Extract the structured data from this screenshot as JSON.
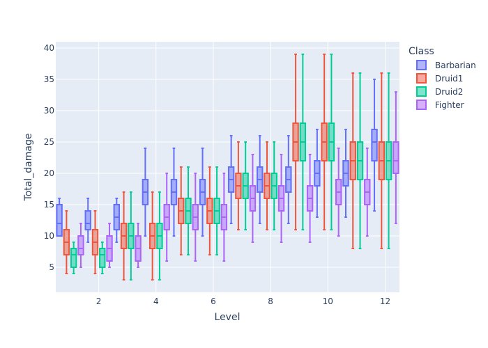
{
  "chart_data": {
    "type": "box",
    "xlabel": "Level",
    "ylabel": "Total_damage",
    "xlim": [
      0.5,
      12.5
    ],
    "ylim": [
      1,
      41
    ],
    "x_ticks": [
      2,
      4,
      6,
      8,
      10,
      12
    ],
    "y_ticks": [
      5,
      10,
      15,
      20,
      25,
      30,
      35,
      40
    ],
    "grid": true,
    "legend_title": "Class",
    "legend_position": "top-right",
    "series": [
      {
        "name": "Barbarian",
        "color": "#636efa",
        "boxes": [
          {
            "level": 1,
            "min": 10,
            "q1": 10,
            "median": 12,
            "q3": 15,
            "max": 16
          },
          {
            "level": 2,
            "min": 9,
            "q1": 11,
            "median": 12,
            "q3": 14,
            "max": 16
          },
          {
            "level": 3,
            "min": 9,
            "q1": 11,
            "median": 13,
            "q3": 15,
            "max": 16
          },
          {
            "level": 4,
            "min": 10,
            "q1": 15,
            "median": 17,
            "q3": 19,
            "max": 24
          },
          {
            "level": 5,
            "min": 10,
            "q1": 15,
            "median": 17,
            "q3": 19,
            "max": 24
          },
          {
            "level": 6,
            "min": 10,
            "q1": 15,
            "median": 17,
            "q3": 19,
            "max": 24
          },
          {
            "level": 7,
            "min": 12,
            "q1": 17,
            "median": 19,
            "q3": 21,
            "max": 26
          },
          {
            "level": 8,
            "min": 12,
            "q1": 17,
            "median": 19,
            "q3": 21,
            "max": 26
          },
          {
            "level": 9,
            "min": 12,
            "q1": 17,
            "median": 19,
            "q3": 21,
            "max": 26
          },
          {
            "level": 10,
            "min": 13,
            "q1": 18,
            "median": 20,
            "q3": 22,
            "max": 27
          },
          {
            "level": 11,
            "min": 13,
            "q1": 18,
            "median": 20,
            "q3": 22,
            "max": 27
          },
          {
            "level": 12,
            "min": 14,
            "q1": 22,
            "median": 25,
            "q3": 27,
            "max": 35
          }
        ]
      },
      {
        "name": "Druid1",
        "color": "#ef553b",
        "boxes": [
          {
            "level": 1,
            "min": 4,
            "q1": 7,
            "median": 9,
            "q3": 11,
            "max": 14
          },
          {
            "level": 2,
            "min": 4,
            "q1": 7,
            "median": 9,
            "q3": 11,
            "max": 14
          },
          {
            "level": 3,
            "min": 3,
            "q1": 8,
            "median": 10,
            "q3": 12,
            "max": 17
          },
          {
            "level": 4,
            "min": 3,
            "q1": 8,
            "median": 10,
            "q3": 12,
            "max": 17
          },
          {
            "level": 5,
            "min": 7,
            "q1": 12,
            "median": 14,
            "q3": 16,
            "max": 21
          },
          {
            "level": 6,
            "min": 7,
            "q1": 12,
            "median": 14,
            "q3": 16,
            "max": 21
          },
          {
            "level": 7,
            "min": 11,
            "q1": 16,
            "median": 18,
            "q3": 20,
            "max": 25
          },
          {
            "level": 8,
            "min": 11,
            "q1": 16,
            "median": 18,
            "q3": 20,
            "max": 25
          },
          {
            "level": 9,
            "min": 11,
            "q1": 22,
            "median": 25,
            "q3": 28,
            "max": 39
          },
          {
            "level": 10,
            "min": 11,
            "q1": 22,
            "median": 25,
            "q3": 28,
            "max": 39
          },
          {
            "level": 11,
            "min": 8,
            "q1": 19,
            "median": 22,
            "q3": 25,
            "max": 36
          },
          {
            "level": 12,
            "min": 8,
            "q1": 19,
            "median": 22,
            "q3": 25,
            "max": 36
          }
        ]
      },
      {
        "name": "Druid2",
        "color": "#00cc96",
        "boxes": [
          {
            "level": 1,
            "min": 4,
            "q1": 5,
            "median": 7,
            "q3": 8,
            "max": 9
          },
          {
            "level": 2,
            "min": 4,
            "q1": 5,
            "median": 7,
            "q3": 8,
            "max": 9
          },
          {
            "level": 3,
            "min": 3,
            "q1": 8,
            "median": 10,
            "q3": 12,
            "max": 17
          },
          {
            "level": 4,
            "min": 3,
            "q1": 8,
            "median": 10,
            "q3": 12,
            "max": 17
          },
          {
            "level": 5,
            "min": 7,
            "q1": 12,
            "median": 14,
            "q3": 16,
            "max": 21
          },
          {
            "level": 6,
            "min": 7,
            "q1": 12,
            "median": 14,
            "q3": 16,
            "max": 21
          },
          {
            "level": 7,
            "min": 11,
            "q1": 16,
            "median": 18,
            "q3": 20,
            "max": 25
          },
          {
            "level": 8,
            "min": 11,
            "q1": 16,
            "median": 18,
            "q3": 20,
            "max": 25
          },
          {
            "level": 9,
            "min": 11,
            "q1": 22,
            "median": 25,
            "q3": 28,
            "max": 39
          },
          {
            "level": 10,
            "min": 11,
            "q1": 22,
            "median": 25,
            "q3": 28,
            "max": 39
          },
          {
            "level": 11,
            "min": 8,
            "q1": 19,
            "median": 22,
            "q3": 25,
            "max": 36
          },
          {
            "level": 12,
            "min": 8,
            "q1": 19,
            "median": 22,
            "q3": 25,
            "max": 36
          }
        ]
      },
      {
        "name": "Fighter",
        "color": "#ab63fa",
        "boxes": [
          {
            "level": 1,
            "min": 5,
            "q1": 7,
            "median": 8,
            "q3": 10,
            "max": 12
          },
          {
            "level": 2,
            "min": 5,
            "q1": 6,
            "median": 8,
            "q3": 10,
            "max": 12
          },
          {
            "level": 3,
            "min": 5,
            "q1": 6,
            "median": 8,
            "q3": 10,
            "max": 12
          },
          {
            "level": 4,
            "min": 6,
            "q1": 11,
            "median": 13,
            "q3": 15,
            "max": 20
          },
          {
            "level": 5,
            "min": 6,
            "q1": 11,
            "median": 13,
            "q3": 15,
            "max": 20
          },
          {
            "level": 6,
            "min": 6,
            "q1": 11,
            "median": 13,
            "q3": 15,
            "max": 20
          },
          {
            "level": 7,
            "min": 9,
            "q1": 14,
            "median": 16,
            "q3": 18,
            "max": 23
          },
          {
            "level": 8,
            "min": 9,
            "q1": 14,
            "median": 16,
            "q3": 18,
            "max": 23
          },
          {
            "level": 9,
            "min": 9,
            "q1": 14,
            "median": 16,
            "q3": 18,
            "max": 23
          },
          {
            "level": 10,
            "min": 10,
            "q1": 15,
            "median": 17,
            "q3": 19,
            "max": 24
          },
          {
            "level": 11,
            "min": 10,
            "q1": 15,
            "median": 17,
            "q3": 19,
            "max": 24
          },
          {
            "level": 12,
            "min": 12,
            "q1": 20,
            "median": 22,
            "q3": 25,
            "max": 33
          }
        ]
      }
    ]
  }
}
